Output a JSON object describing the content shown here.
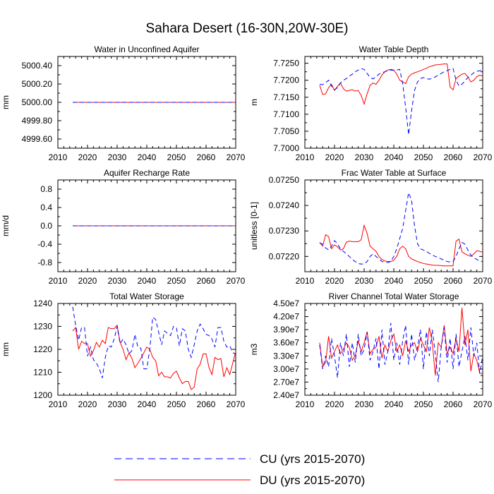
{
  "title": "Sahara Desert (16-30N,20W-30E)",
  "legend": [
    {
      "label": "CU (yrs 2015-2070)",
      "color": "#0000ff",
      "dash": "dashed"
    },
    {
      "label": "DU (yrs 2015-2070)",
      "color": "#ff0000",
      "dash": "solid"
    }
  ],
  "chart_data": [
    {
      "type": "line",
      "title": "Water in Unconfined Aquifer",
      "ylabel": "mm",
      "xlim": [
        2010,
        2070
      ],
      "ylim": [
        4999.5,
        5000.5
      ],
      "xticks": [
        2010,
        2020,
        2030,
        2040,
        2050,
        2060,
        2070
      ],
      "xticklabels": [
        "2010",
        "2020",
        "2030",
        "2040",
        "2050",
        "2060",
        "2070"
      ],
      "yticks": [
        4999.6,
        4999.8,
        5000.0,
        5000.2,
        5000.4
      ],
      "yticklabels": [
        "4999.60",
        "4999.80",
        "5000.00",
        "5000.20",
        "5000.40"
      ],
      "x": [
        2015,
        2070
      ],
      "series": [
        {
          "name": "CU (yrs 2015-2070)",
          "values": [
            5000.0,
            5000.0
          ]
        },
        {
          "name": "DU (yrs 2015-2070)",
          "values": [
            5000.0,
            5000.0
          ]
        }
      ]
    },
    {
      "type": "line",
      "title": "Water Table Depth",
      "ylabel": "m",
      "xlim": [
        2010,
        2070
      ],
      "ylim": [
        7.7,
        7.727
      ],
      "xticks": [
        2010,
        2020,
        2030,
        2040,
        2050,
        2060,
        2070
      ],
      "xticklabels": [
        "2010",
        "2020",
        "2030",
        "2040",
        "2050",
        "2060",
        "2070"
      ],
      "yticks": [
        7.7,
        7.705,
        7.71,
        7.715,
        7.72,
        7.725
      ],
      "yticklabels": [
        "7.7000",
        "7.7050",
        "7.7100",
        "7.7150",
        "7.7200",
        "7.7250"
      ],
      "x": [
        2015,
        2016,
        2017,
        2018,
        2019,
        2020,
        2021,
        2022,
        2023,
        2024,
        2025,
        2026,
        2027,
        2028,
        2029,
        2030,
        2031,
        2032,
        2033,
        2034,
        2035,
        2036,
        2037,
        2038,
        2039,
        2040,
        2041,
        2042,
        2043,
        2044,
        2045,
        2046,
        2047,
        2048,
        2049,
        2050,
        2051,
        2052,
        2053,
        2054,
        2055,
        2056,
        2057,
        2058,
        2059,
        2060,
        2061,
        2062,
        2063,
        2064,
        2065,
        2066,
        2067,
        2068,
        2069,
        2070
      ],
      "series": [
        {
          "name": "CU (yrs 2015-2070)",
          "values": [
            7.7188,
            7.7187,
            7.7193,
            7.72,
            7.7183,
            7.7172,
            7.7178,
            7.7192,
            7.72,
            7.7205,
            7.7212,
            7.7218,
            7.7225,
            7.723,
            7.7234,
            7.7232,
            7.722,
            7.7208,
            7.7204,
            7.721,
            7.7218,
            7.7222,
            7.7225,
            7.7228,
            7.723,
            7.7229,
            7.723,
            7.7232,
            7.719,
            7.712,
            7.704,
            7.711,
            7.717,
            7.7195,
            7.7205,
            7.7208,
            7.7205,
            7.7203,
            7.7206,
            7.721,
            7.7215,
            7.722,
            7.7225,
            7.7228,
            7.7232,
            7.7235,
            7.72,
            7.7183,
            7.7188,
            7.7198,
            7.7208,
            7.7215,
            7.7222,
            7.7226,
            7.7228,
            7.723
          ]
        },
        {
          "name": "DU (yrs 2015-2070)",
          "values": [
            7.7185,
            7.7158,
            7.716,
            7.7178,
            7.7188,
            7.717,
            7.7182,
            7.7192,
            7.7175,
            7.7168,
            7.717,
            7.7172,
            7.7168,
            7.717,
            7.7155,
            7.713,
            7.716,
            7.7185,
            7.7192,
            7.7188,
            7.72,
            7.7215,
            7.7225,
            7.723,
            7.7232,
            7.723,
            7.7218,
            7.72,
            7.7195,
            7.719,
            7.721,
            7.7218,
            7.7222,
            7.7225,
            7.7228,
            7.7232,
            7.7235,
            7.724,
            7.7242,
            7.7245,
            7.7246,
            7.7247,
            7.7248,
            7.7248,
            7.718,
            7.7172,
            7.7205,
            7.7212,
            7.7218,
            7.722,
            7.721,
            7.7195,
            7.72,
            7.721,
            7.7215,
            7.7212
          ]
        }
      ]
    },
    {
      "type": "line",
      "title": "Aquifer Recharge Rate",
      "ylabel": "mm/d",
      "xlim": [
        2010,
        2070
      ],
      "ylim": [
        -1.0,
        1.0
      ],
      "xticks": [
        2010,
        2020,
        2030,
        2040,
        2050,
        2060,
        2070
      ],
      "xticklabels": [
        "2010",
        "2020",
        "2030",
        "2040",
        "2050",
        "2060",
        "2070"
      ],
      "yticks": [
        -0.8,
        -0.4,
        0.0,
        0.4,
        0.8
      ],
      "yticklabels": [
        "-0.8",
        "-0.4",
        "0.0",
        "0.4",
        "0.8"
      ],
      "x": [
        2015,
        2070
      ],
      "series": [
        {
          "name": "CU (yrs 2015-2070)",
          "values": [
            0.0,
            0.0
          ]
        },
        {
          "name": "DU (yrs 2015-2070)",
          "values": [
            0.0,
            0.0
          ]
        }
      ]
    },
    {
      "type": "line",
      "title": "Frac Water Table at Surface",
      "ylabel": "unitless [0-1]",
      "xlim": [
        2010,
        2070
      ],
      "ylim": [
        0.07214,
        0.0725
      ],
      "xticks": [
        2010,
        2020,
        2030,
        2040,
        2050,
        2060,
        2070
      ],
      "xticklabels": [
        "2010",
        "2020",
        "2030",
        "2040",
        "2050",
        "2060",
        "2070"
      ],
      "yticks": [
        0.0722,
        0.0723,
        0.0724,
        0.0725
      ],
      "yticklabels": [
        "0.07220",
        "0.07230",
        "0.07240",
        "0.07250"
      ],
      "x": [
        2015,
        2016,
        2017,
        2018,
        2019,
        2020,
        2021,
        2022,
        2023,
        2024,
        2025,
        2026,
        2027,
        2028,
        2029,
        2030,
        2031,
        2032,
        2033,
        2034,
        2035,
        2036,
        2037,
        2038,
        2039,
        2040,
        2041,
        2042,
        2043,
        2044,
        2045,
        2046,
        2047,
        2048,
        2049,
        2050,
        2051,
        2052,
        2053,
        2054,
        2055,
        2056,
        2057,
        2058,
        2059,
        2060,
        2061,
        2062,
        2063,
        2064,
        2065,
        2066,
        2067,
        2068,
        2069,
        2070
      ],
      "series": [
        {
          "name": "CU (yrs 2015-2070)",
          "values": [
            0.072253,
            0.072248,
            0.072233,
            0.072226,
            0.07224,
            0.072262,
            0.07225,
            0.07223,
            0.07222,
            0.07221,
            0.0722,
            0.072188,
            0.07218,
            0.072172,
            0.07217,
            0.07217,
            0.07218,
            0.0722,
            0.07221,
            0.0722,
            0.07219,
            0.07218,
            0.072178,
            0.072176,
            0.07218,
            0.0722,
            0.07223,
            0.07227,
            0.07231,
            0.07238,
            0.07245,
            0.07242,
            0.07232,
            0.07225,
            0.07223,
            0.072225,
            0.07222,
            0.072212,
            0.072205,
            0.0722,
            0.072195,
            0.07219,
            0.072185,
            0.07218,
            0.072178,
            0.07218,
            0.0722,
            0.07223,
            0.072255,
            0.072248,
            0.072225,
            0.072205,
            0.072195,
            0.072188,
            0.072182,
            0.07218
          ]
        },
        {
          "name": "DU (yrs 2015-2070)",
          "values": [
            0.072255,
            0.07224,
            0.072285,
            0.072278,
            0.07223,
            0.072245,
            0.072238,
            0.072225,
            0.07223,
            0.072256,
            0.07226,
            0.072258,
            0.072258,
            0.072258,
            0.072265,
            0.072322,
            0.07229,
            0.07224,
            0.07223,
            0.07222,
            0.0722,
            0.072188,
            0.072182,
            0.07218,
            0.07218,
            0.072185,
            0.0722,
            0.07223,
            0.07224,
            0.07223,
            0.0722,
            0.07219,
            0.072185,
            0.07218,
            0.072176,
            0.072172,
            0.07217,
            0.072168,
            0.072166,
            0.072165,
            0.072165,
            0.072164,
            0.072163,
            0.072163,
            0.072163,
            0.072163,
            0.07226,
            0.072268,
            0.072218,
            0.07221,
            0.072205,
            0.0722,
            0.07221,
            0.072222,
            0.07222,
            0.072216
          ]
        }
      ]
    },
    {
      "type": "line",
      "title": "Total Water Storage",
      "ylabel": "mm",
      "xlim": [
        2010,
        2070
      ],
      "ylim": [
        1200,
        1240
      ],
      "xticks": [
        2010,
        2020,
        2030,
        2040,
        2050,
        2060,
        2070
      ],
      "xticklabels": [
        "2010",
        "2020",
        "2030",
        "2040",
        "2050",
        "2060",
        "2070"
      ],
      "yticks": [
        1200,
        1210,
        1220,
        1230,
        1240
      ],
      "yticklabels": [
        "1200",
        "1210",
        "1220",
        "1230",
        "1240"
      ],
      "x": [
        2015,
        2016,
        2017,
        2018,
        2019,
        2020,
        2021,
        2022,
        2023,
        2024,
        2025,
        2026,
        2027,
        2028,
        2029,
        2030,
        2031,
        2032,
        2033,
        2034,
        2035,
        2036,
        2037,
        2038,
        2039,
        2040,
        2041,
        2042,
        2043,
        2044,
        2045,
        2046,
        2047,
        2048,
        2049,
        2050,
        2051,
        2052,
        2053,
        2054,
        2055,
        2056,
        2057,
        2058,
        2059,
        2060,
        2061,
        2062,
        2063,
        2064,
        2065,
        2066,
        2067,
        2068,
        2069,
        2070
      ],
      "series": [
        {
          "name": "CU (yrs 2015-2070)",
          "values": [
            1238.5,
            1230.5,
            1224.0,
            1229.5,
            1229.5,
            1217.0,
            1221.0,
            1215.5,
            1214.0,
            1211.5,
            1207.5,
            1216.5,
            1221.5,
            1221.0,
            1224.5,
            1230.0,
            1222.5,
            1224.5,
            1222.0,
            1218.0,
            1219.5,
            1226.5,
            1221.0,
            1220.5,
            1211.5,
            1211.5,
            1220.0,
            1234.0,
            1233.0,
            1227.5,
            1222.0,
            1228.0,
            1227.0,
            1226.0,
            1230.0,
            1229.5,
            1221.5,
            1229.0,
            1228.0,
            1220.0,
            1216.5,
            1222.0,
            1228.0,
            1231.0,
            1229.0,
            1226.5,
            1226.0,
            1224.5,
            1221.0,
            1229.5,
            1229.5,
            1223.5,
            1221.0,
            1221.5,
            1218.5,
            1218.0
          ]
        },
        {
          "name": "DU (yrs 2015-2070)",
          "values": [
            1228.0,
            1229.5,
            1220.0,
            1223.5,
            1222.5,
            1222.5,
            1217.0,
            1219.5,
            1223.0,
            1221.0,
            1224.0,
            1222.5,
            1229.5,
            1229.0,
            1229.0,
            1230.5,
            1223.0,
            1220.0,
            1215.5,
            1218.5,
            1216.0,
            1212.0,
            1214.0,
            1216.0,
            1218.5,
            1221.0,
            1220.0,
            1216.5,
            1215.0,
            1208.5,
            1210.0,
            1208.0,
            1208.0,
            1207.5,
            1209.5,
            1210.5,
            1207.5,
            1205.0,
            1206.0,
            1206.0,
            1202.5,
            1203.5,
            1211.5,
            1213.5,
            1218.0,
            1218.0,
            1212.0,
            1209.0,
            1216.5,
            1215.5,
            1216.0,
            1208.0,
            1212.0,
            1209.0,
            1214.0,
            1219.0
          ]
        }
      ]
    },
    {
      "type": "line",
      "title": "River Channel Total Water Storage",
      "ylabel": "m3",
      "xlim": [
        2010,
        2070
      ],
      "ylim": [
        24000000,
        45000000
      ],
      "xticks": [
        2010,
        2020,
        2030,
        2040,
        2050,
        2060,
        2070
      ],
      "xticklabels": [
        "2010",
        "2020",
        "2030",
        "2040",
        "2050",
        "2060",
        "2070"
      ],
      "yticks": [
        24000000,
        27000000,
        30000000,
        33000000,
        36000000,
        39000000,
        42000000,
        45000000
      ],
      "yticklabels": [
        "2.40e7",
        "2.70e7",
        "3.00e7",
        "3.30e7",
        "3.60e7",
        "3.90e7",
        "4.20e7",
        "4.50e7"
      ],
      "x": [
        2015,
        2016,
        2017,
        2018,
        2019,
        2020,
        2021,
        2022,
        2023,
        2024,
        2025,
        2026,
        2027,
        2028,
        2029,
        2030,
        2031,
        2032,
        2033,
        2034,
        2035,
        2036,
        2037,
        2038,
        2039,
        2040,
        2041,
        2042,
        2043,
        2044,
        2045,
        2046,
        2047,
        2048,
        2049,
        2050,
        2051,
        2052,
        2053,
        2054,
        2055,
        2056,
        2057,
        2058,
        2059,
        2060,
        2061,
        2062,
        2063,
        2064,
        2065,
        2066,
        2067,
        2068,
        2069,
        2070
      ],
      "series": [
        {
          "name": "CU (yrs 2015-2070)",
          "values": [
            35500000,
            30000000,
            33000000,
            30500000,
            37000000,
            33000000,
            28000000,
            36000000,
            33000000,
            38000000,
            30500000,
            36000000,
            31500000,
            38000000,
            33000000,
            34500000,
            38500000,
            32000000,
            34000000,
            37000000,
            30000000,
            39000000,
            31000000,
            34000000,
            40500000,
            32000000,
            36000000,
            31000000,
            36500000,
            40000000,
            31000000,
            38000000,
            32000000,
            35000000,
            39000000,
            30000000,
            38500000,
            33000000,
            39000000,
            33500000,
            27000000,
            35000000,
            39500000,
            31500000,
            37000000,
            30000000,
            38000000,
            30500000,
            34000000,
            37500000,
            32000000,
            39500000,
            33000000,
            36000000,
            29000000,
            33000000
          ]
        },
        {
          "name": "DU (yrs 2015-2070)",
          "values": [
            36000000,
            30500000,
            31500000,
            37500000,
            32500000,
            34000000,
            35500000,
            33500000,
            34500000,
            36000000,
            35000000,
            32000000,
            33000000,
            36500000,
            34000000,
            36000000,
            38500000,
            33500000,
            34500000,
            35000000,
            37500000,
            32500000,
            35500000,
            34000000,
            36500000,
            38000000,
            34000000,
            35500000,
            33000000,
            36500000,
            34000000,
            35500000,
            36000000,
            34000000,
            37000000,
            35500000,
            34000000,
            39500000,
            36000000,
            28500000,
            36000000,
            35000000,
            40000000,
            33500000,
            35000000,
            33500000,
            37000000,
            34000000,
            44000000,
            35500000,
            39000000,
            29500000,
            33500000,
            32000000,
            29000000,
            29000000
          ]
        }
      ]
    }
  ]
}
